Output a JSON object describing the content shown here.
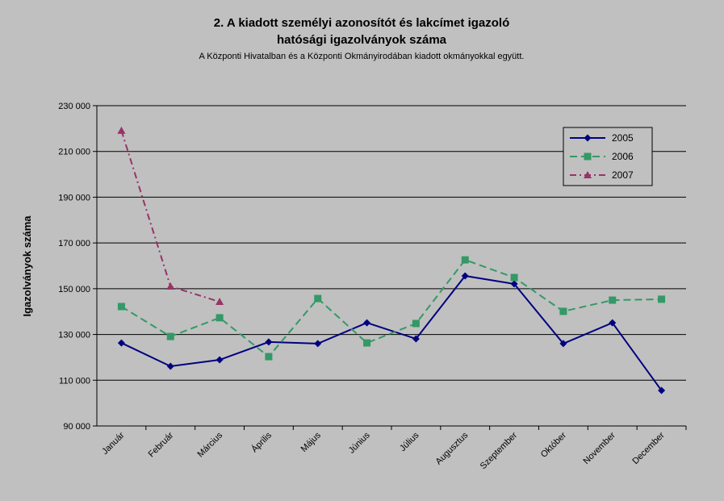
{
  "chart_data": {
    "type": "line",
    "title": "2. A kiadott személyi azonosítót és lakcímet igazoló",
    "title_line2": "hatósági igazolványok száma",
    "subtitle": "A Központi Hivatalban és a Központi Okmányirodában kiadott okmányokkal együtt.",
    "y_label": "Igazolványok száma",
    "categories": [
      "Január",
      "Február",
      "Március",
      "Április",
      "Május",
      "Június",
      "Július",
      "Augusztus",
      "Szeptember",
      "Október",
      "November",
      "December"
    ],
    "series": [
      {
        "name": "2005",
        "color": "#000080",
        "marker": "diamond",
        "dash": "solid",
        "values": [
          126300,
          116100,
          118900,
          126700,
          126000,
          135100,
          128100,
          155600,
          152100,
          126000,
          135100,
          105500
        ]
      },
      {
        "name": "2006",
        "color": "#339966",
        "marker": "square",
        "dash": "dashed",
        "values": [
          142200,
          129100,
          137300,
          120300,
          145700,
          126300,
          134800,
          162600,
          154900,
          140100,
          145000,
          145400
        ]
      },
      {
        "name": "2007",
        "color": "#993366",
        "marker": "triangle",
        "dash": "dashdot",
        "values": [
          219100,
          151000,
          144300,
          null,
          null,
          null,
          null,
          null,
          null,
          null,
          null,
          null
        ]
      }
    ],
    "ylim": [
      90000,
      230000
    ],
    "yticks": [
      {
        "value": 90000,
        "label": "90 000"
      },
      {
        "value": 110000,
        "label": "110 000"
      },
      {
        "value": 130000,
        "label": "130 000"
      },
      {
        "value": 150000,
        "label": "150 000"
      },
      {
        "value": 170000,
        "label": "170 000"
      },
      {
        "value": 190000,
        "label": "190 000"
      },
      {
        "value": 210000,
        "label": "210 000"
      },
      {
        "value": 230000,
        "label": "230 000"
      }
    ],
    "grid": true,
    "legend": "upper right"
  }
}
